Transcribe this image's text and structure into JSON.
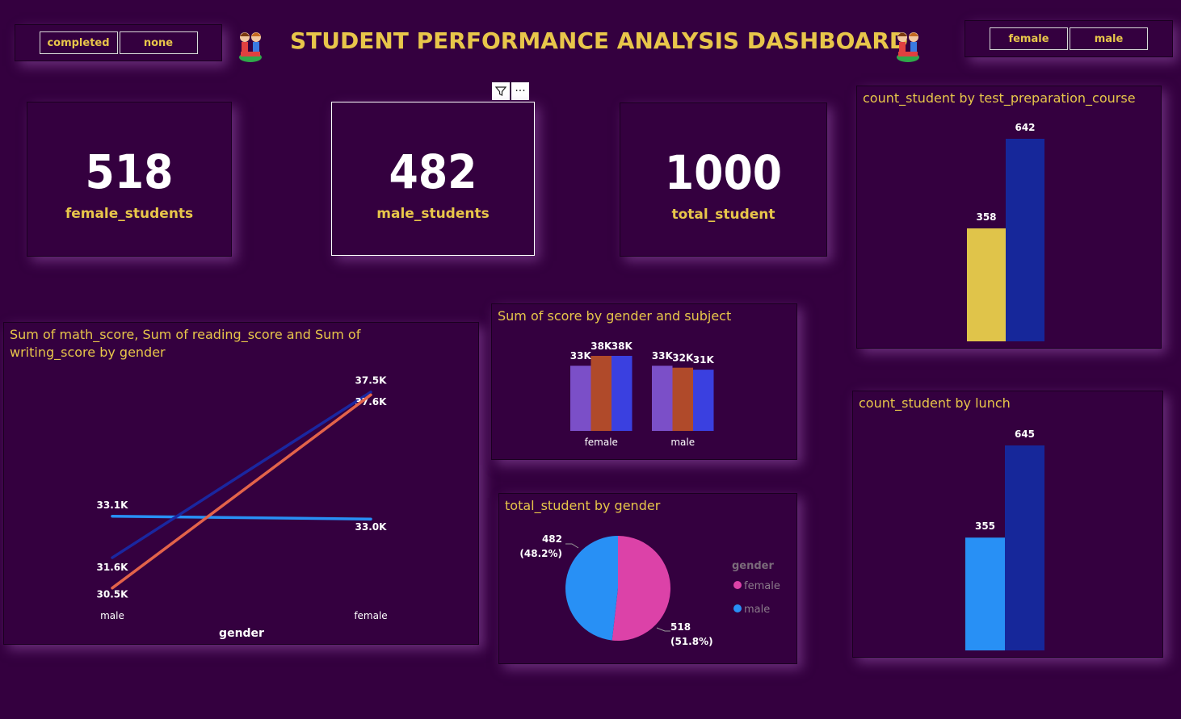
{
  "header": {
    "title": "STUDENT PERFORMANCE ANALYSIS DASHBOARD",
    "left_slicer": [
      "completed",
      "none"
    ],
    "right_slicer": [
      "female",
      "male"
    ],
    "icon": "kids-reading-icon"
  },
  "cards": [
    {
      "value": "518",
      "label": "female_students"
    },
    {
      "value": "482",
      "label": "male_students"
    },
    {
      "value": "1000",
      "label": "total_student"
    }
  ],
  "toolbar": {
    "filter_icon": "filter-icon",
    "more_label": "···"
  },
  "colors": {
    "background": "#34003f",
    "gold": "#e8c64a",
    "dark_blue": "#1a27a0",
    "light_blue": "#2890f5",
    "orange": "#e3634a",
    "purple": "#7b4fc8",
    "rust": "#b04a2a",
    "blue": "#3a40e0",
    "pink": "#dc42a8"
  },
  "chart_data": [
    {
      "id": "line",
      "type": "line",
      "title": "Sum of math_score, Sum of reading_score and Sum of writing_score by gender",
      "xlabel": "gender",
      "categories": [
        "male",
        "female"
      ],
      "series": [
        {
          "values": [
            33100,
            33000
          ],
          "labels": [
            "33.1K",
            "33.0K"
          ],
          "color": "#2890f5"
        },
        {
          "values": [
            31600,
            37600
          ],
          "labels": [
            "31.6K",
            "37.6K"
          ],
          "color": "#1a27a0"
        },
        {
          "values": [
            30500,
            37500
          ],
          "labels": [
            "30.5K",
            "37.5K"
          ],
          "color": "#e3634a"
        }
      ]
    },
    {
      "id": "subject",
      "type": "bar",
      "title": "Sum of score by gender and subject",
      "categories": [
        "female",
        "male"
      ],
      "series": [
        {
          "values": [
            33000,
            33000
          ],
          "labels": [
            "33K",
            "33K"
          ],
          "color": "#7b4fc8"
        },
        {
          "values": [
            38000,
            32000
          ],
          "labels": [
            "38K",
            "32K"
          ],
          "color": "#b04a2a"
        },
        {
          "values": [
            38000,
            31000
          ],
          "labels": [
            "38K",
            "31K"
          ],
          "color": "#3a40e0"
        }
      ]
    },
    {
      "id": "pie",
      "type": "pie",
      "title": "total_student by gender",
      "legend_title": "gender",
      "slices": [
        {
          "name": "female",
          "value": 518,
          "label": "518",
          "pct": "(51.8%)",
          "color": "#dc42a8"
        },
        {
          "name": "male",
          "value": 482,
          "label": "482",
          "pct": "(48.2%)",
          "color": "#2890f5"
        }
      ]
    },
    {
      "id": "prep",
      "type": "bar",
      "title": "count_student by test_preparation_course",
      "values": [
        358,
        642
      ],
      "labels": [
        "358",
        "642"
      ],
      "colors": [
        "#e0c44a",
        "#16279a"
      ]
    },
    {
      "id": "lunch",
      "type": "bar",
      "title": "count_student by lunch",
      "values": [
        355,
        645
      ],
      "labels": [
        "355",
        "645"
      ],
      "colors": [
        "#2890f5",
        "#16279a"
      ]
    }
  ]
}
